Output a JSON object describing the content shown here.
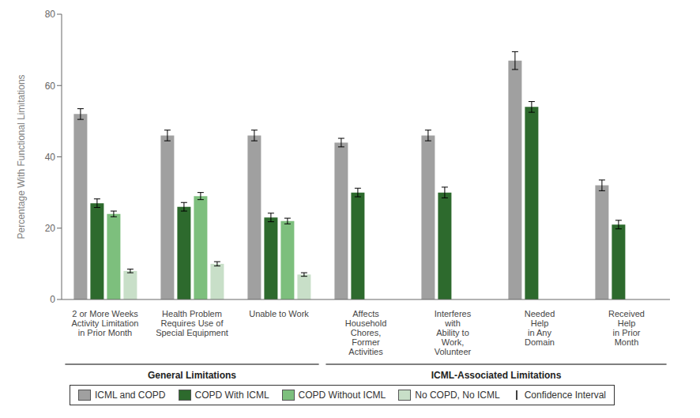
{
  "chart_data": {
    "type": "bar",
    "categories": [
      "2 or More Weeks\nActivity Limitation\nin Prior Month",
      "Health Problem\nRequires Use of\nSpecial Equipment",
      "Unable to Work",
      "Affects\nHousehold\nChores,\nFormer\nActivities",
      "Interferes\nwith\nAbility to\nWork,\nVolunteer",
      "Needed\nHelp\nin Any\nDomain",
      "Received\nHelp\nin Prior\nMonth"
    ],
    "series": [
      {
        "name": "ICML and COPD",
        "color": "#a0a0a0",
        "values": [
          52.0,
          46.0,
          46.0,
          44.0,
          46.0,
          67.0,
          32.0
        ],
        "errors": [
          1.5,
          1.5,
          1.5,
          1.2,
          1.5,
          2.5,
          1.5
        ]
      },
      {
        "name": "COPD With ICML",
        "color": "#2d6a2d",
        "values": [
          27.0,
          26.0,
          23.0,
          30.0,
          30.0,
          54.0,
          21.0
        ],
        "errors": [
          1.2,
          1.2,
          1.2,
          1.2,
          1.5,
          1.5,
          1.2
        ]
      },
      {
        "name": "COPD Without ICML",
        "color": "#7dbf7d",
        "values": [
          24.0,
          29.0,
          22.0,
          null,
          null,
          null,
          null
        ],
        "errors": [
          0.8,
          1.0,
          0.8,
          null,
          null,
          null,
          null
        ]
      },
      {
        "name": "No COPD, No ICML",
        "color": "#c8dfc8",
        "values": [
          8.0,
          10.0,
          7.0,
          null,
          null,
          null,
          null
        ],
        "errors": [
          0.5,
          0.6,
          0.5,
          null,
          null,
          null,
          null
        ]
      }
    ],
    "error_label": "Confidence Interval",
    "ylabel": "Percentage With Functional Limitations",
    "ylim": [
      0,
      80
    ],
    "yticks": [
      0,
      20,
      40,
      60,
      80
    ],
    "grid": false,
    "annotations": [
      {
        "text": "General Limitations",
        "from": "2 or More Weeks\nActivity Limitation\nin Prior Month",
        "to": "Unable to Work"
      },
      {
        "text": "ICML-Associated Limitations",
        "from": "Affects\nHousehold\nChores,\nFormer\nActivities",
        "to": "Received\nHelp\nin Prior\nMonth"
      }
    ]
  }
}
